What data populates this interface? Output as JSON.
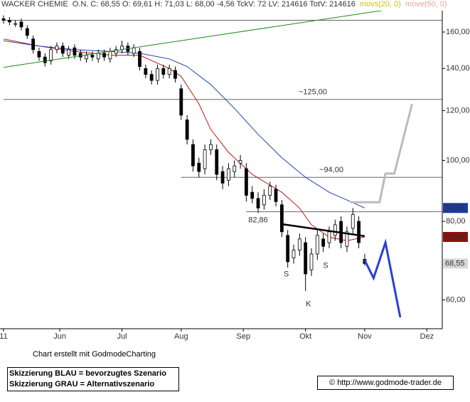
{
  "header": {
    "title": "WACKER CHEMIE",
    "quote": "O.N. C: 68,55 O: 69,61 H: 71,03 L: 68,00 -4,56 TckV: 72 LV: 214616 TotV: 214616",
    "indicators": [
      {
        "label": "movs(20, 0)",
        "color": "#c8c800"
      },
      {
        "label": "move(50, 0)",
        "color": "#e8a0a0"
      }
    ]
  },
  "chart_data": {
    "type": "candlestick",
    "log_scale": true,
    "xlim": [
      0,
      147
    ],
    "xticks": [
      {
        "value": 0,
        "label": "11"
      },
      {
        "value": 19,
        "label": "Jun"
      },
      {
        "value": 40,
        "label": "Jul"
      },
      {
        "value": 60,
        "label": "Aug"
      },
      {
        "value": 81,
        "label": "Sep"
      },
      {
        "value": 102,
        "label": "Okt"
      },
      {
        "value": 122,
        "label": "Nov"
      },
      {
        "value": 143,
        "label": "Dez"
      }
    ],
    "ylim": [
      54,
      173
    ],
    "yticks": [
      {
        "value": 60,
        "label": "60,00"
      },
      {
        "value": 80,
        "label": "80,00"
      },
      {
        "value": 100,
        "label": "100,00"
      },
      {
        "value": 120,
        "label": "120,00"
      },
      {
        "value": 140,
        "label": "140,00"
      },
      {
        "value": 160,
        "label": "160,00"
      }
    ],
    "x": [
      0,
      2,
      4,
      6,
      8,
      10,
      12,
      14,
      16,
      18,
      20,
      22,
      24,
      26,
      28,
      30,
      32,
      34,
      36,
      38,
      40,
      42,
      44,
      46,
      48,
      50,
      52,
      54,
      56,
      58,
      60,
      62,
      64,
      66,
      68,
      70,
      72,
      74,
      76,
      78,
      80,
      82,
      84,
      86,
      88,
      90,
      92,
      94,
      96,
      98,
      100,
      102,
      104,
      106,
      108,
      110,
      112,
      114,
      116,
      118,
      120,
      122
    ],
    "open": [
      168,
      167,
      165,
      166,
      162,
      156,
      149,
      146,
      144,
      150,
      152,
      147,
      151,
      148,
      145,
      147,
      145,
      148,
      145,
      148,
      150,
      152,
      148,
      149,
      140,
      137,
      134,
      140,
      137,
      139,
      130,
      116,
      106,
      99,
      97,
      104,
      104,
      96,
      93,
      96,
      99,
      97,
      89,
      87,
      85,
      88,
      90,
      85,
      76,
      70,
      72,
      74,
      67,
      71,
      75,
      74,
      76,
      80,
      73,
      78,
      80,
      69.61
    ],
    "high": [
      170,
      169,
      167,
      168,
      164,
      158,
      151,
      148,
      152,
      154,
      154,
      152,
      153,
      150,
      149,
      149,
      150,
      150,
      151,
      152,
      155,
      154,
      153,
      151,
      142,
      139,
      142,
      142,
      142,
      141,
      132,
      118,
      108,
      101,
      106,
      108,
      106,
      98,
      99,
      100,
      102,
      99,
      91,
      89,
      90,
      92.5,
      91.5,
      86.5,
      77.5,
      73.5,
      76.5,
      75.5,
      72.5,
      77.5,
      76.5,
      78.5,
      80.5,
      81.5,
      78.5,
      84,
      81.5,
      71.03
    ],
    "low": [
      165,
      164,
      163,
      161,
      156,
      148,
      144,
      141,
      142,
      148,
      146,
      145,
      145,
      144,
      143,
      144,
      143,
      144,
      143,
      146,
      148,
      147,
      146,
      139,
      135,
      132,
      132,
      135,
      135,
      133,
      116,
      106,
      96,
      94,
      95,
      102,
      93,
      90,
      91,
      94,
      97,
      86,
      85.5,
      82.5,
      83.5,
      86.5,
      84.5,
      75.5,
      67.5,
      68.5,
      70.5,
      62,
      65.5,
      69.5,
      71.5,
      72.5,
      74.5,
      72.5,
      71.5,
      76.5,
      72.5,
      68
    ],
    "close": [
      167,
      166,
      165,
      163,
      158,
      150,
      146,
      143,
      150,
      152,
      148,
      150,
      147,
      146,
      147,
      146,
      148,
      146,
      149,
      150,
      152,
      149,
      151,
      141,
      137,
      134,
      140,
      137,
      140,
      135,
      118,
      108,
      98,
      96,
      104,
      106,
      95,
      92,
      97,
      98,
      100,
      88,
      87,
      84,
      88,
      91,
      86,
      77,
      69,
      72,
      75,
      66,
      71,
      76,
      73,
      77,
      79,
      74,
      77,
      82,
      74,
      68.55
    ],
    "up_color": "#ffffff",
    "down_color": "#000000",
    "moving_averages": [
      {
        "color": "#c01818",
        "x": [
          0,
          12,
          24,
          36,
          46,
          56,
          60,
          66,
          70,
          76,
          84,
          94,
          100,
          104,
          110,
          116,
          122
        ],
        "values": [
          156,
          152,
          149,
          147,
          147,
          140,
          136,
          123,
          112,
          103,
          95,
          89,
          84,
          79,
          75.5,
          74.5,
          75.56
        ]
      },
      {
        "color": "#2040b0",
        "x": [
          0,
          12,
          24,
          36,
          46,
          56,
          62,
          70,
          78,
          86,
          94,
          102,
          110,
          116,
          122
        ],
        "values": [
          155,
          152,
          150,
          149,
          148,
          145,
          141,
          132,
          121,
          110,
          101,
          94,
          89,
          86.5,
          84.01
        ]
      }
    ],
    "hlines": [
      {
        "value": 167,
        "from": 0
      },
      {
        "value": 125,
        "from": 0,
        "label": "~125,00"
      },
      {
        "value": 94,
        "from": 60,
        "label": "~94,00"
      },
      {
        "value": 82.86,
        "from": 82,
        "label": "82,86"
      }
    ],
    "lines": [
      {
        "color": "#1a8a1a",
        "width": 1,
        "x": [
          0,
          131
        ],
        "values": [
          140.6,
          174
        ]
      },
      {
        "color": "#1a8a1a",
        "width": 1,
        "x": [
          0,
          9.5
        ],
        "values": [
          173,
          180
        ]
      },
      {
        "color": "#000000",
        "width": 2.5,
        "x": [
          94,
          122
        ],
        "values": [
          79.2,
          75.8
        ]
      },
      {
        "color": "#bbbbbb",
        "width": 3,
        "x": [
          117,
          127,
          129,
          132,
          138
        ],
        "values": [
          85.8,
          85.8,
          95.3,
          95.3,
          122.9
        ]
      },
      {
        "color": "#2b3fd0",
        "width": 3,
        "x": [
          122,
          125,
          129,
          134
        ],
        "values": [
          69.4,
          65,
          74,
          56.3
        ]
      }
    ],
    "annotations": [
      {
        "text": "S",
        "x": 95.5,
        "y": 65.9
      },
      {
        "text": "S",
        "x": 108.8,
        "y": 68
      },
      {
        "text": "K",
        "x": 103,
        "y": 59.1
      }
    ],
    "price_labels": [
      {
        "value": 84.01,
        "label": "84,01",
        "color": "#1a3c9c"
      },
      {
        "value": 75.56,
        "label": "75,56",
        "color": "#8a0f0f"
      },
      {
        "value": 68.55,
        "label": "68,55",
        "color": "#d8d8d8"
      }
    ]
  },
  "footer": {
    "credit": "Chart erstellt mit GodmodeCharting",
    "legend": [
      "Skizzierung BLAU = bevorzugtes Szenario",
      "Skizzierung GRAU = Alternativszenario"
    ],
    "source": "© http://www.godmode-trader.de"
  }
}
